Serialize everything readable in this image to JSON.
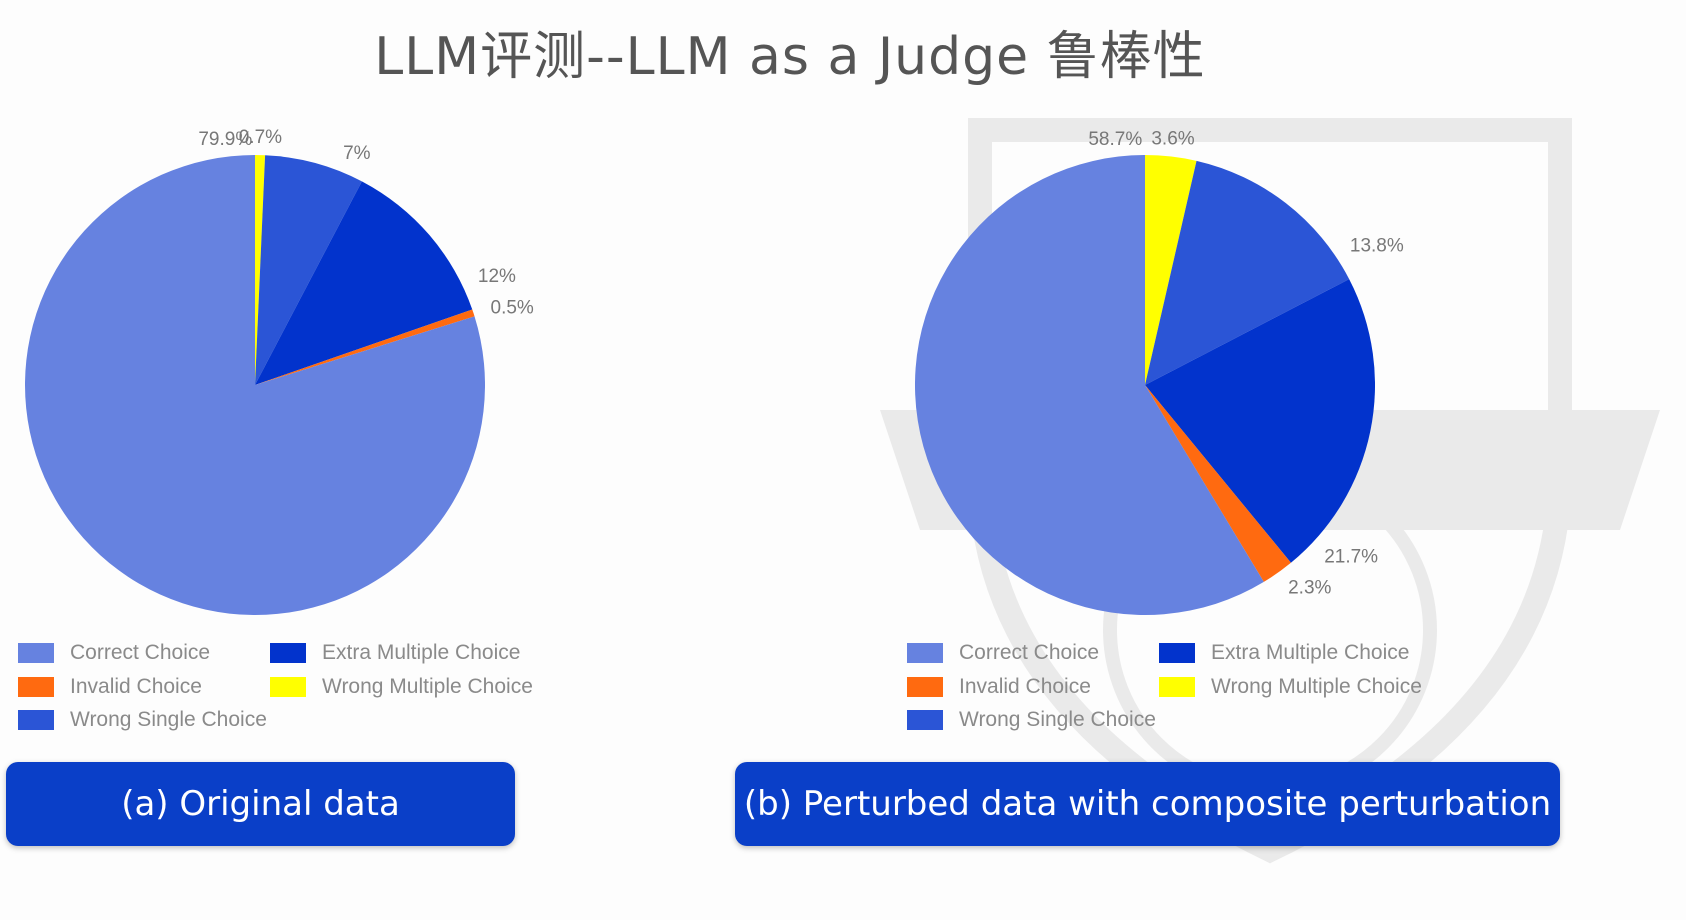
{
  "title": "LLM评测--LLM as a Judge   鲁棒性",
  "legend_items": [
    {
      "label": "Correct Choice",
      "color": "#6682e0"
    },
    {
      "label": "Invalid Choice",
      "color": "#ff6a10"
    },
    {
      "label": "Wrong Single Choice",
      "color": "#2b55d6"
    },
    {
      "label": "Extra Multiple Choice",
      "color": "#0233cc"
    },
    {
      "label": "Wrong Multiple Choice",
      "color": "#ffff00"
    }
  ],
  "chart_data": [
    {
      "type": "pie",
      "caption": "(a)  Original data",
      "start_angle_deg": 0,
      "direction": "clockwise",
      "slices": [
        {
          "name": "Wrong Multiple Choice",
          "value": 0.7,
          "label": "0.7%",
          "color": "#ffff00"
        },
        {
          "name": "Wrong Single Choice",
          "value": 7,
          "label": "7%",
          "color": "#2b55d6"
        },
        {
          "name": "Extra Multiple Choice",
          "value": 12,
          "label": "12%",
          "color": "#0233cc"
        },
        {
          "name": "Invalid Choice",
          "value": 0.5,
          "label": "0.5%",
          "color": "#ff6a10"
        },
        {
          "name": "Correct Choice",
          "value": 79.9,
          "label": "79.9%",
          "color": "#6682e0"
        }
      ]
    },
    {
      "type": "pie",
      "caption": "(b)  Perturbed data with   composite perturbation",
      "start_angle_deg": 0,
      "direction": "clockwise",
      "slices": [
        {
          "name": "Wrong Multiple Choice",
          "value": 3.6,
          "label": "3.6%",
          "color": "#ffff00"
        },
        {
          "name": "Wrong Single Choice",
          "value": 13.8,
          "label": "13.8%",
          "color": "#2b55d6"
        },
        {
          "name": "Extra Multiple Choice",
          "value": 21.7,
          "label": "21.7%",
          "color": "#0233cc"
        },
        {
          "name": "Invalid Choice",
          "value": 2.3,
          "label": "2.3%",
          "color": "#ff6a10"
        },
        {
          "name": "Correct Choice",
          "value": 58.7,
          "label": "58.7%",
          "color": "#6682e0"
        }
      ]
    }
  ]
}
